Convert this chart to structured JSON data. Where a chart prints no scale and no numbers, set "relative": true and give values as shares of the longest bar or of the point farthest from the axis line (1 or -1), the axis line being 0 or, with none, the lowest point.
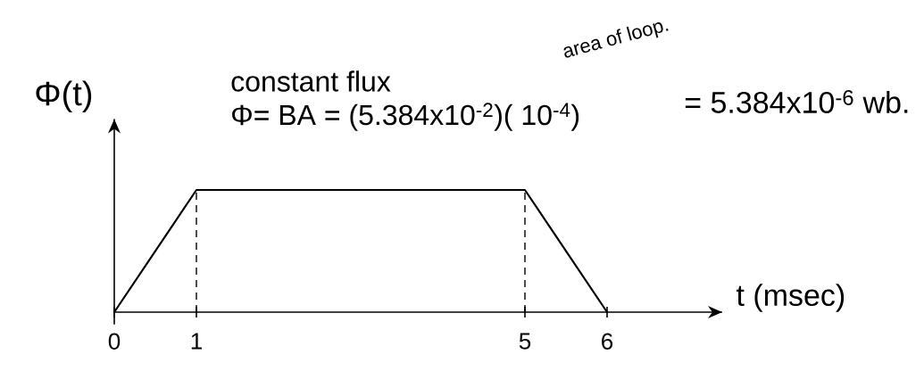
{
  "chart_data": {
    "type": "line",
    "xlabel": "t (msec)",
    "ylabel": "Φ(t)",
    "annotations": [
      "constant flux",
      "Φ= BA = (5.384x10$^{-2}$)( 10$^{-4}$)",
      "= 5.384x10$^{-6}$ wb.",
      "area of loop."
    ],
    "x": [
      0,
      1,
      5,
      6
    ],
    "values": [
      0,
      1,
      1,
      0
    ],
    "color": "#000000",
    "relative": true,
    "xlim": [
      0,
      7.4
    ],
    "xticks": [
      0,
      1,
      5,
      6
    ],
    "tick_labels": "x",
    "ref_lines": [
      {
        "axis": "x",
        "value": 1,
        "line_style": "dashed"
      },
      {
        "axis": "x",
        "value": 5,
        "line_style": "dashed"
      }
    ]
  }
}
